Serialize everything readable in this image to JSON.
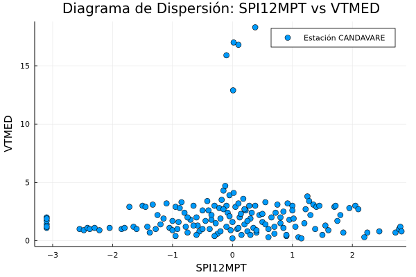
{
  "chart_data": {
    "type": "scatter",
    "title": "Diagrama de Dispersión: SPI12MPT vs VTMED",
    "xlabel": "SPI12MPT",
    "ylabel": "VTMED",
    "xlim": [
      -3.3,
      2.9
    ],
    "ylim": [
      -0.5,
      18.8
    ],
    "xticks": [
      -3,
      -2,
      -1,
      0,
      1,
      2
    ],
    "xtick_labels": [
      "−3",
      "−2",
      "−1",
      "0",
      "1",
      "2"
    ],
    "yticks": [
      0,
      5,
      10,
      15
    ],
    "ytick_labels": [
      "0",
      "5",
      "10",
      "15"
    ],
    "grid": true,
    "legend_position": "top-right",
    "marker_color": "#009AFA",
    "series": [
      {
        "name": "Estación CANDAVARE",
        "points": [
          [
            0.38,
            18.3
          ],
          [
            0.02,
            17.0
          ],
          [
            0.1,
            16.8
          ],
          [
            -0.1,
            15.9
          ],
          [
            0.01,
            12.9
          ],
          [
            -3.1,
            1.1
          ],
          [
            -3.1,
            1.4
          ],
          [
            -3.1,
            1.7
          ],
          [
            -3.1,
            2.0
          ],
          [
            -3.1,
            1.9
          ],
          [
            -3.1,
            1.2
          ],
          [
            -2.55,
            1.0
          ],
          [
            -2.48,
            0.9
          ],
          [
            -2.42,
            1.1
          ],
          [
            -2.38,
            1.0
          ],
          [
            -2.3,
            1.1
          ],
          [
            -2.22,
            0.9
          ],
          [
            -2.05,
            1.1
          ],
          [
            -1.85,
            1.0
          ],
          [
            -1.8,
            1.1
          ],
          [
            -1.72,
            2.9
          ],
          [
            -1.65,
            1.2
          ],
          [
            -1.6,
            1.0
          ],
          [
            -1.5,
            3.0
          ],
          [
            -1.45,
            2.9
          ],
          [
            -1.42,
            1.2
          ],
          [
            -1.38,
            0.7
          ],
          [
            -1.33,
            3.1
          ],
          [
            -1.28,
            1.0
          ],
          [
            -1.2,
            1.4
          ],
          [
            -1.15,
            1.9
          ],
          [
            -1.1,
            3.2
          ],
          [
            -1.05,
            1.1
          ],
          [
            -1.0,
            0.9
          ],
          [
            -0.95,
            2.9
          ],
          [
            -0.9,
            1.6
          ],
          [
            -0.85,
            3.3
          ],
          [
            -0.8,
            2.4
          ],
          [
            -0.78,
            1.2
          ],
          [
            -0.75,
            0.7
          ],
          [
            -0.7,
            1.8
          ],
          [
            -0.65,
            3.0
          ],
          [
            -0.6,
            2.0
          ],
          [
            -0.58,
            1.3
          ],
          [
            -0.55,
            0.8
          ],
          [
            -0.5,
            2.6
          ],
          [
            -0.45,
            1.7
          ],
          [
            -0.42,
            3.4
          ],
          [
            -0.38,
            1.0
          ],
          [
            -0.35,
            2.2
          ],
          [
            -0.3,
            3.0
          ],
          [
            -0.28,
            1.5
          ],
          [
            -0.25,
            0.6
          ],
          [
            -0.22,
            2.8
          ],
          [
            -0.2,
            1.9
          ],
          [
            -0.18,
            3.5
          ],
          [
            -0.15,
            4.3
          ],
          [
            -0.12,
            4.7
          ],
          [
            -0.1,
            1.2
          ],
          [
            -0.08,
            2.4
          ],
          [
            -0.05,
            3.9
          ],
          [
            -0.03,
            0.9
          ],
          [
            0.0,
            1.6
          ],
          [
            0.02,
            4.1
          ],
          [
            0.05,
            2.9
          ],
          [
            0.08,
            1.0
          ],
          [
            0.1,
            3.2
          ],
          [
            0.12,
            2.0
          ],
          [
            0.15,
            0.5
          ],
          [
            0.18,
            3.6
          ],
          [
            0.2,
            1.4
          ],
          [
            0.22,
            2.6
          ],
          [
            0.25,
            0.8
          ],
          [
            0.28,
            3.0
          ],
          [
            0.3,
            1.9
          ],
          [
            0.32,
            2.4
          ],
          [
            0.35,
            1.1
          ],
          [
            0.38,
            3.0
          ],
          [
            0.4,
            0.7
          ],
          [
            0.45,
            2.2
          ],
          [
            0.5,
            1.6
          ],
          [
            0.55,
            3.3
          ],
          [
            0.6,
            1.0
          ],
          [
            0.65,
            2.0
          ],
          [
            0.7,
            0.6
          ],
          [
            0.75,
            3.1
          ],
          [
            0.8,
            1.5
          ],
          [
            0.85,
            2.5
          ],
          [
            0.9,
            0.4
          ],
          [
            0.95,
            1.8
          ],
          [
            1.0,
            3.0
          ],
          [
            1.05,
            1.2
          ],
          [
            1.1,
            0.3
          ],
          [
            1.15,
            0.2
          ],
          [
            1.2,
            1.5
          ],
          [
            1.22,
            2.7
          ],
          [
            1.25,
            3.8
          ],
          [
            1.28,
            3.4
          ],
          [
            1.3,
            2.2
          ],
          [
            1.35,
            3.1
          ],
          [
            1.38,
            1.0
          ],
          [
            1.4,
            2.9
          ],
          [
            1.45,
            3.0
          ],
          [
            1.5,
            0.5
          ],
          [
            1.55,
            1.3
          ],
          [
            1.6,
            0.9
          ],
          [
            1.7,
            2.9
          ],
          [
            1.72,
            3.0
          ],
          [
            1.75,
            1.7
          ],
          [
            1.8,
            2.2
          ],
          [
            1.85,
            0.7
          ],
          [
            1.95,
            2.8
          ],
          [
            2.05,
            3.0
          ],
          [
            2.1,
            2.7
          ],
          [
            2.2,
            0.3
          ],
          [
            2.25,
            0.7
          ],
          [
            2.45,
            0.8
          ],
          [
            2.72,
            0.7
          ],
          [
            2.78,
            1.0
          ],
          [
            2.8,
            1.2
          ],
          [
            2.82,
            0.8
          ],
          [
            -0.95,
            0.4
          ],
          [
            -0.6,
            0.5
          ],
          [
            -0.3,
            0.4
          ],
          [
            0.0,
            0.2
          ],
          [
            0.3,
            0.5
          ],
          [
            0.6,
            0.3
          ],
          [
            0.9,
            0.5
          ],
          [
            -0.5,
            1.0
          ],
          [
            -0.2,
            0.8
          ],
          [
            0.1,
            1.1
          ],
          [
            0.4,
            0.9
          ],
          [
            0.7,
            1.2
          ],
          [
            -0.75,
            2.0
          ],
          [
            -0.4,
            2.6
          ],
          [
            -0.1,
            3.0
          ],
          [
            0.2,
            2.7
          ],
          [
            0.5,
            2.3
          ],
          [
            0.8,
            2.0
          ],
          [
            -1.25,
            2.2
          ],
          [
            -1.0,
            1.7
          ],
          [
            -0.65,
            1.3
          ],
          [
            -0.35,
            1.8
          ],
          [
            -0.05,
            2.1
          ],
          [
            0.25,
            1.7
          ],
          [
            0.55,
            1.4
          ],
          [
            0.85,
            1.1
          ],
          [
            1.0,
            2.6
          ],
          [
            1.02,
            1.9
          ],
          [
            -0.15,
            2.7
          ],
          [
            0.14,
            2.3
          ],
          [
            -0.88,
            2.8
          ],
          [
            -0.92,
            1.0
          ],
          [
            0.72,
            2.4
          ],
          [
            0.92,
            3.2
          ]
        ]
      }
    ]
  }
}
